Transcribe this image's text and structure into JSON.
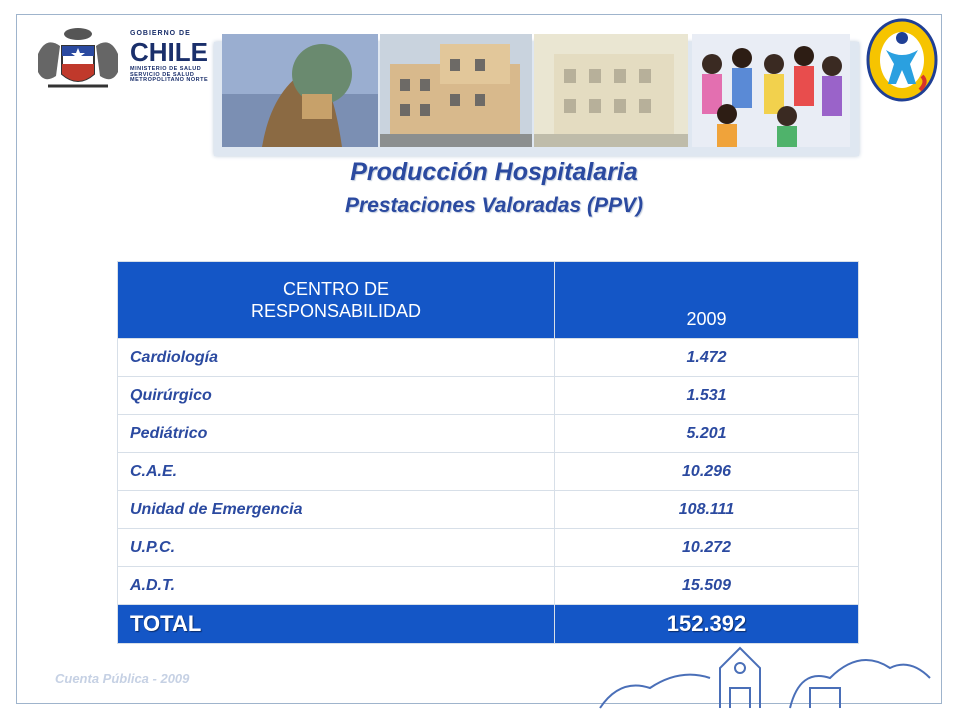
{
  "header": {
    "gov_line1": "GOBIERNO DE",
    "gov_line2": "CHILE",
    "gov_line3": "MINISTERIO DE SALUD",
    "gov_line4": "SERVICIO DE SALUD",
    "gov_line5": "METROPOLITANO NORTE"
  },
  "title": "Producción Hospitalaria",
  "subtitle": "Prestaciones Valoradas  (PPV)",
  "table": {
    "header_col1_line1": "CENTRO DE",
    "header_col1_line2": "RESPONSABILIDAD",
    "header_col2": "2009",
    "rows": [
      {
        "name": "Cardiología",
        "value": "1.472"
      },
      {
        "name": "Quirúrgico",
        "value": "1.531"
      },
      {
        "name": "Pediátrico",
        "value": "5.201"
      },
      {
        "name": "C.A.E.",
        "value": "10.296"
      },
      {
        "name": "Unidad de Emergencia",
        "value": "108.111"
      },
      {
        "name": "U.P.C.",
        "value": "10.272"
      },
      {
        "name": "A.D.T.",
        "value": "15.509"
      }
    ],
    "total_label": "TOTAL",
    "total_value": "152.392"
  },
  "footer": "Cuenta Pública - 2009",
  "colors": {
    "accent": "#1456c6",
    "text": "#2b4aa0"
  }
}
